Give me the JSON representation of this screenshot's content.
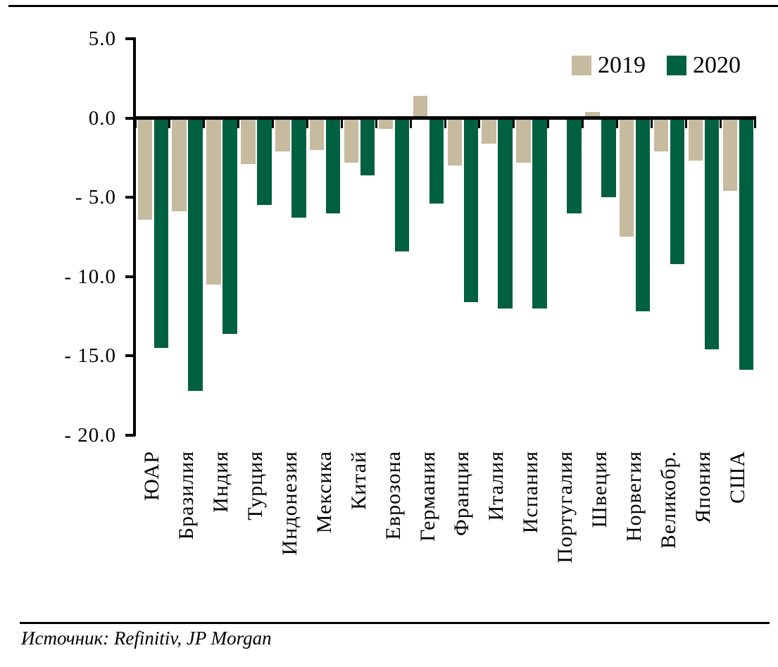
{
  "chart_data": {
    "type": "bar",
    "title": "",
    "xlabel": "",
    "ylabel": "",
    "categories": [
      "ЮАР",
      "Бразилия",
      "Индия",
      "Турция",
      "Индонезия",
      "Мексика",
      "Китай",
      "Еврозона",
      "Германия",
      "Франция",
      "Италия",
      "Испания",
      "Португалия",
      "Швеция",
      "Норвегия",
      "Великобр.",
      "Япония",
      "США"
    ],
    "series": [
      {
        "name": "2019",
        "color": "#C6BA9F",
        "values": [
          -6.4,
          -5.9,
          -10.5,
          -2.9,
          -2.1,
          -2.0,
          -2.8,
          -0.7,
          1.4,
          -3.0,
          -1.6,
          -2.8,
          -0.1,
          0.4,
          -7.5,
          -2.1,
          -2.7,
          -4.6
        ]
      },
      {
        "name": "2020",
        "color": "#006040",
        "values": [
          -14.5,
          -17.2,
          -13.6,
          -5.5,
          -6.3,
          -6.0,
          -3.6,
          -8.4,
          -5.4,
          -11.6,
          -12.0,
          -12.0,
          -6.0,
          -5.0,
          -12.2,
          -9.2,
          -14.6,
          -15.9
        ]
      }
    ],
    "ylim": [
      -20,
      5
    ],
    "yticks": [
      5,
      0,
      -5,
      -10,
      -15,
      -20
    ],
    "ytick_labels": [
      "5.0",
      "0.0",
      "- 5.0",
      "- 10.0",
      "- 15.0",
      "- 20.0"
    ],
    "legend_position": "top-right",
    "grid": false,
    "x_labels_rotation_deg": -90
  },
  "legend": {
    "item_2019": "2019",
    "item_2020": "2020"
  },
  "source": {
    "label": "Источник: Refinitiv, JP Morgan"
  },
  "colors": {
    "bar_2019": "#C6BA9F",
    "bar_2020": "#006040",
    "axis": "#000000",
    "background": "#FFFFFF"
  }
}
